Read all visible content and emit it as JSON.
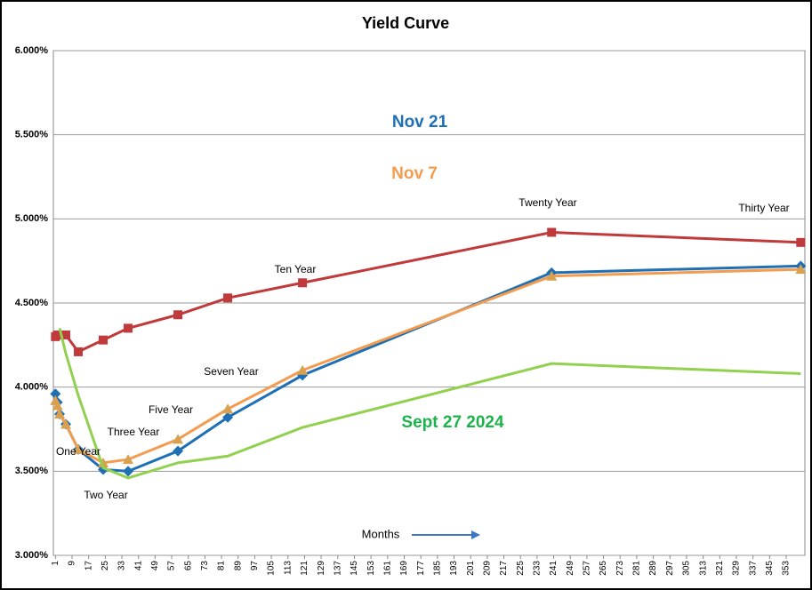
{
  "chart_data": {
    "type": "line",
    "title": "Yield Curve",
    "x": [
      1,
      2,
      3,
      6,
      12,
      24,
      36,
      60,
      84,
      120,
      240,
      360
    ],
    "xlim": [
      0,
      362
    ],
    "xticks": [
      1,
      9,
      17,
      25,
      33,
      41,
      49,
      57,
      65,
      73,
      81,
      89,
      97,
      105,
      113,
      121,
      129,
      137,
      145,
      153,
      161,
      169,
      177,
      185,
      193,
      201,
      209,
      217,
      225,
      233,
      241,
      249,
      257,
      265,
      273,
      281,
      289,
      297,
      305,
      313,
      321,
      329,
      337,
      345,
      353
    ],
    "ylim": [
      3,
      6
    ],
    "yticks": [
      {
        "value": 3,
        "label": "3.000%"
      },
      {
        "value": 3.5,
        "label": "3.500%"
      },
      {
        "value": 4,
        "label": "4.000%"
      },
      {
        "value": 4.5,
        "label": "4.500%"
      },
      {
        "value": 5,
        "label": "5.000%"
      },
      {
        "value": 5.5,
        "label": "5.500%"
      },
      {
        "value": 6,
        "label": "6.000%"
      }
    ],
    "grid": true,
    "xlabel": "Months",
    "series": [
      {
        "color": "#c0393b",
        "marker": "square",
        "values": [
          4.3,
          4.31,
          4.31,
          4.31,
          4.21,
          4.28,
          4.35,
          4.43,
          4.53,
          4.62,
          4.92,
          4.86
        ]
      },
      {
        "name": "Nov 21",
        "color": "#1f6fb5",
        "marker": "diamond",
        "values": [
          3.96,
          3.91,
          3.84,
          3.78,
          3.63,
          3.51,
          3.5,
          3.62,
          3.82,
          4.07,
          4.68,
          4.72
        ]
      },
      {
        "name": "Nov 7",
        "color": "#f39c4f",
        "marker": "triangle",
        "values": [
          3.92,
          3.89,
          3.84,
          3.78,
          3.63,
          3.55,
          3.57,
          3.69,
          3.87,
          4.1,
          4.66,
          4.7
        ]
      },
      {
        "name": "Sept 27 2024",
        "color": "#92d050",
        "marker": "none",
        "values": [
          null,
          null,
          4.35,
          4.2,
          3.95,
          3.52,
          3.46,
          3.55,
          3.59,
          3.76,
          4.14,
          4.08
        ]
      }
    ],
    "series_labels": [
      {
        "text": "Nov 21",
        "color": "#1f6fb5"
      },
      {
        "text": "Nov 7",
        "color": "#f39c4f"
      },
      {
        "text": "Sept 27 2024",
        "color": "#1db34c"
      }
    ],
    "annotations": [
      "One Year",
      "Two Year",
      "Three Year",
      "Five Year",
      "Seven Year",
      "Ten Year",
      "Twenty Year",
      "Thirty Year"
    ]
  }
}
